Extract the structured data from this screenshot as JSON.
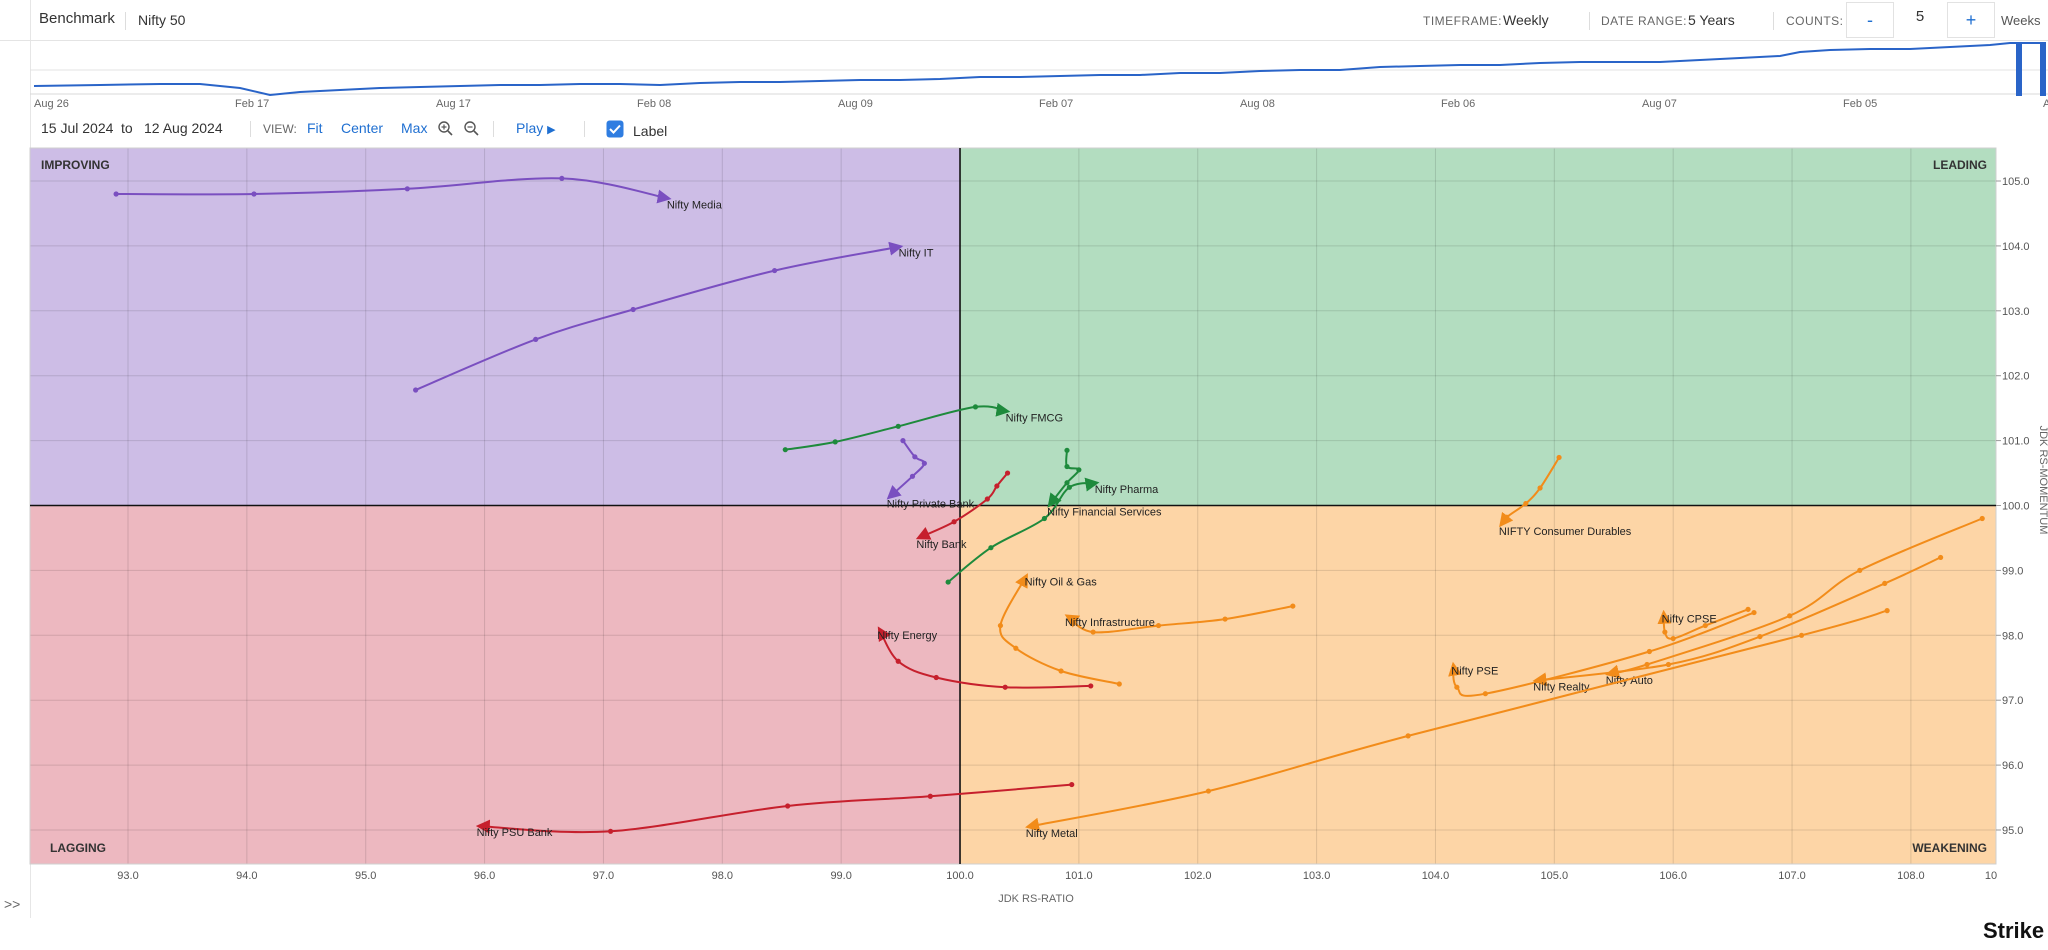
{
  "header": {
    "benchmark_label": "Benchmark",
    "benchmark_value": "Nifty 50",
    "timeframe_label": "TIMEFRAME:",
    "timeframe_value": "Weekly",
    "date_range_label": "DATE RANGE:",
    "date_range_value": "5 Years",
    "counts_label": "COUNTS:",
    "counts_minus": "-",
    "counts_value": "5",
    "counts_plus": "+",
    "counts_unit": "Weeks"
  },
  "controls": {
    "date_from": "15  Jul  2024",
    "to_label": "to",
    "date_to": "12  Aug  2024",
    "view_label": "VIEW:",
    "fit": "Fit",
    "center": "Center",
    "max": "Max",
    "play": "Play",
    "label_toggle": "Label",
    "expand": ">>"
  },
  "brand": "Strike",
  "timeline": {
    "ticks": [
      "Aug 26",
      "Feb 17",
      "Aug 17",
      "Feb 08",
      "Aug 09",
      "Feb 07",
      "Aug 08",
      "Feb 06",
      "Aug 07",
      "Feb 05"
    ],
    "partial_tick": "A"
  },
  "chart_data": {
    "type": "scatter",
    "xlabel": "JDK RS-RATIO",
    "ylabel": "JDK RS-MOMENTUM",
    "xlim": [
      92.4,
      108.9
    ],
    "ylim": [
      94.5,
      105.5
    ],
    "x_ticks": [
      93.0,
      94.0,
      95.0,
      96.0,
      97.0,
      98.0,
      99.0,
      100.0,
      101.0,
      102.0,
      103.0,
      104.0,
      105.0,
      106.0,
      107.0,
      108.0
    ],
    "x_tick_labels": [
      "93.0",
      "94.0",
      "95.0",
      "96.0",
      "97.0",
      "98.0",
      "99.0",
      "100.0",
      "101.0",
      "102.0",
      "103.0",
      "104.0",
      "105.0",
      "106.0",
      "107.0",
      "108.0"
    ],
    "x_tick_edge_label": "10",
    "y_ticks": [
      95.0,
      96.0,
      97.0,
      98.0,
      99.0,
      100.0,
      101.0,
      102.0,
      103.0,
      104.0,
      105.0
    ],
    "y_tick_labels": [
      "95.0",
      "96.0",
      "97.0",
      "98.0",
      "99.0",
      "100.0",
      "101.0",
      "102.0",
      "103.0",
      "104.0",
      "105.0"
    ],
    "center": [
      100,
      100
    ],
    "grid": true,
    "quadrants": [
      {
        "name": "IMPROVING",
        "color": "#cdbde6"
      },
      {
        "name": "LEADING",
        "color": "#b3ddc0"
      },
      {
        "name": "LAGGING",
        "color": "#edb8c0"
      },
      {
        "name": "WEAKENING",
        "color": "#fdd5a6"
      }
    ],
    "series": [
      {
        "name": "Nifty Media",
        "color": "#7a4fc0",
        "points": [
          [
            92.9,
            104.8
          ],
          [
            94.06,
            104.8
          ],
          [
            95.35,
            104.88
          ],
          [
            96.65,
            105.04
          ],
          [
            97.55,
            104.73
          ]
        ]
      },
      {
        "name": "Nifty IT",
        "color": "#7a4fc0",
        "points": [
          [
            95.42,
            101.78
          ],
          [
            96.43,
            102.56
          ],
          [
            97.25,
            103.02
          ],
          [
            98.44,
            103.62
          ],
          [
            99.5,
            103.99
          ]
        ]
      },
      {
        "name": "Nifty Private Bank",
        "color": "#7a4fc0",
        "points": [
          [
            99.52,
            101.0
          ],
          [
            99.62,
            100.75
          ],
          [
            99.7,
            100.65
          ],
          [
            99.6,
            100.45
          ],
          [
            99.4,
            100.12
          ]
        ]
      },
      {
        "name": "Nifty FMCG",
        "color": "#1e8a3c",
        "points": [
          [
            98.53,
            100.86
          ],
          [
            98.95,
            100.98
          ],
          [
            99.48,
            101.22
          ],
          [
            100.13,
            101.52
          ],
          [
            100.4,
            101.45
          ]
        ]
      },
      {
        "name": "Nifty Pharma",
        "color": "#1e8a3c",
        "points": [
          [
            99.9,
            98.82
          ],
          [
            100.26,
            99.35
          ],
          [
            100.71,
            99.8
          ],
          [
            100.92,
            100.28
          ],
          [
            101.15,
            100.35
          ]
        ]
      },
      {
        "name": "Nifty Financial Services",
        "color": "#1e8a3c",
        "points": [
          [
            100.9,
            100.85
          ],
          [
            100.9,
            100.6
          ],
          [
            101.0,
            100.55
          ],
          [
            100.9,
            100.35
          ],
          [
            100.75,
            100.0
          ]
        ]
      },
      {
        "name": "Nifty Bank",
        "color": "#c6202d",
        "points": [
          [
            100.4,
            100.5
          ],
          [
            100.31,
            100.3
          ],
          [
            100.23,
            100.1
          ],
          [
            99.95,
            99.75
          ],
          [
            99.65,
            99.5
          ]
        ]
      },
      {
        "name": "Nifty Energy",
        "color": "#c6202d",
        "points": [
          [
            101.1,
            97.22
          ],
          [
            100.38,
            97.2
          ],
          [
            99.8,
            97.35
          ],
          [
            99.48,
            97.6
          ],
          [
            99.32,
            98.1
          ]
        ]
      },
      {
        "name": "Nifty PSU Bank",
        "color": "#c6202d",
        "points": [
          [
            100.94,
            95.7
          ],
          [
            99.75,
            95.52
          ],
          [
            98.55,
            95.37
          ],
          [
            97.06,
            94.98
          ],
          [
            95.95,
            95.06
          ]
        ]
      },
      {
        "name": "NIFTY Consumer Durables",
        "color": "#f28c1a",
        "points": [
          [
            105.04,
            100.74
          ],
          [
            104.88,
            100.27
          ],
          [
            104.76,
            100.03
          ],
          [
            104.6,
            99.82
          ],
          [
            104.55,
            99.7
          ]
        ]
      },
      {
        "name": "Nifty Oil & Gas",
        "color": "#f28c1a",
        "points": [
          [
            101.34,
            97.25
          ],
          [
            100.85,
            97.45
          ],
          [
            100.47,
            97.8
          ],
          [
            100.34,
            98.15
          ],
          [
            100.56,
            98.92
          ]
        ]
      },
      {
        "name": "Nifty Infrastructure",
        "color": "#f28c1a",
        "points": [
          [
            102.8,
            98.45
          ],
          [
            102.23,
            98.25
          ],
          [
            101.67,
            98.15
          ],
          [
            101.12,
            98.05
          ],
          [
            100.9,
            98.3
          ]
        ]
      },
      {
        "name": "Nifty CPSE",
        "color": "#f28c1a",
        "points": [
          [
            106.63,
            98.4
          ],
          [
            106.27,
            98.15
          ],
          [
            106.0,
            97.95
          ],
          [
            105.93,
            98.05
          ],
          [
            105.92,
            98.35
          ]
        ]
      },
      {
        "name": "Nifty PSE",
        "color": "#f28c1a",
        "points": [
          [
            106.68,
            98.35
          ],
          [
            105.8,
            97.75
          ],
          [
            104.42,
            97.1
          ],
          [
            104.18,
            97.2
          ],
          [
            104.15,
            97.55
          ]
        ]
      },
      {
        "name": "Nifty Auto",
        "color": "#f28c1a",
        "points": [
          [
            108.6,
            99.8
          ],
          [
            107.57,
            99.0
          ],
          [
            106.98,
            98.3
          ],
          [
            105.78,
            97.55
          ],
          [
            105.45,
            97.4
          ]
        ]
      },
      {
        "name": "Nifty Realty",
        "color": "#f28c1a",
        "points": [
          [
            108.25,
            99.2
          ],
          [
            107.78,
            98.8
          ],
          [
            106.73,
            97.98
          ],
          [
            105.96,
            97.55
          ],
          [
            104.84,
            97.3
          ]
        ]
      },
      {
        "name": "Nifty Metal",
        "color": "#f28c1a",
        "points": [
          [
            107.8,
            98.38
          ],
          [
            107.08,
            98.0
          ],
          [
            103.77,
            96.45
          ],
          [
            102.09,
            95.6
          ],
          [
            100.57,
            95.05
          ]
        ]
      }
    ]
  }
}
